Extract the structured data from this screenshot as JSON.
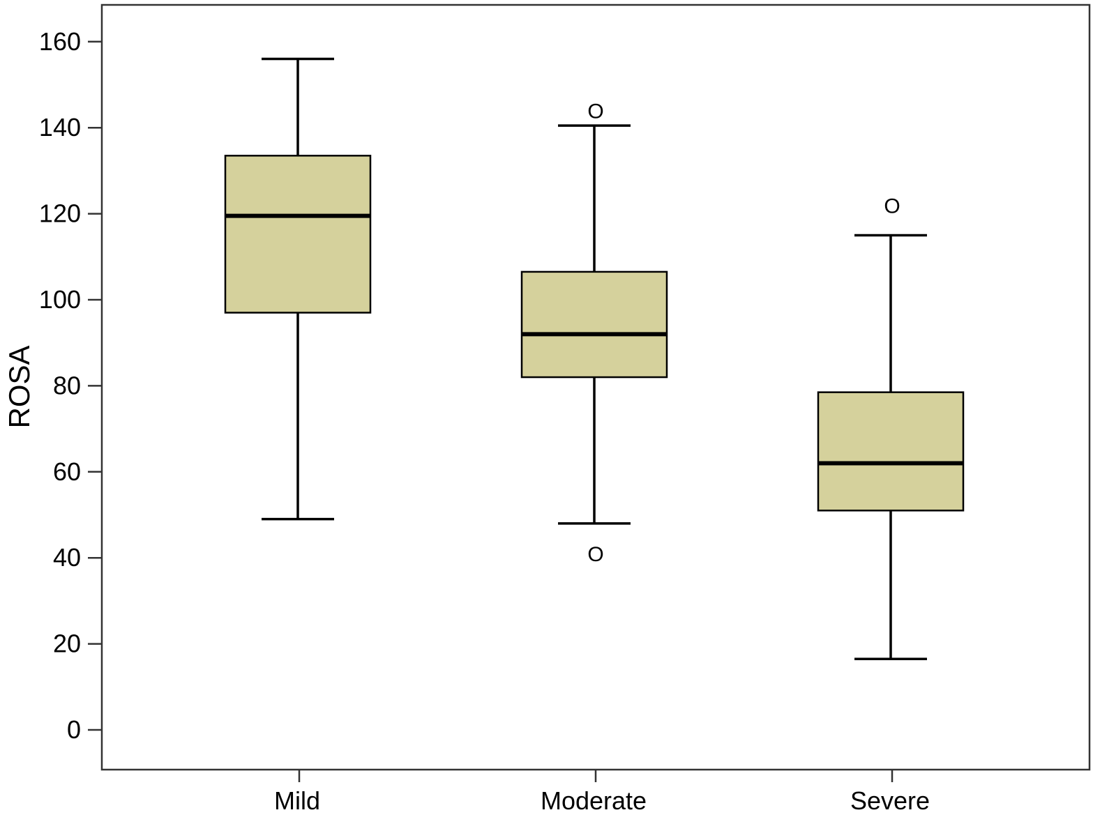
{
  "chart_data": {
    "type": "boxplot",
    "title": "",
    "xlabel": "",
    "ylabel": "ROSA",
    "ylim": [
      -9,
      168
    ],
    "yticks": [
      0,
      20,
      40,
      60,
      80,
      100,
      120,
      140,
      160
    ],
    "yticklabels": [
      "0",
      "20",
      "40",
      "60",
      "80",
      "100",
      "120",
      "140",
      "160"
    ],
    "grid": false,
    "legend": "none",
    "box_color": "#d5d19c",
    "line_color": "#000000",
    "outlier_marker": "O",
    "categories": [
      "Mild",
      "Moderate",
      "Severe"
    ],
    "boxes": [
      {
        "category": "Mild",
        "min": 49,
        "q1": 97,
        "median": 119.5,
        "q3": 133.5,
        "max": 156,
        "outliers": []
      },
      {
        "category": "Moderate",
        "min": 48,
        "q1": 82,
        "median": 92,
        "q3": 106.5,
        "max": 140.5,
        "outliers": [
          144,
          41
        ]
      },
      {
        "category": "Severe",
        "min": 16.5,
        "q1": 51,
        "median": 62,
        "q3": 78.5,
        "max": 115,
        "outliers": [
          122
        ]
      }
    ]
  }
}
